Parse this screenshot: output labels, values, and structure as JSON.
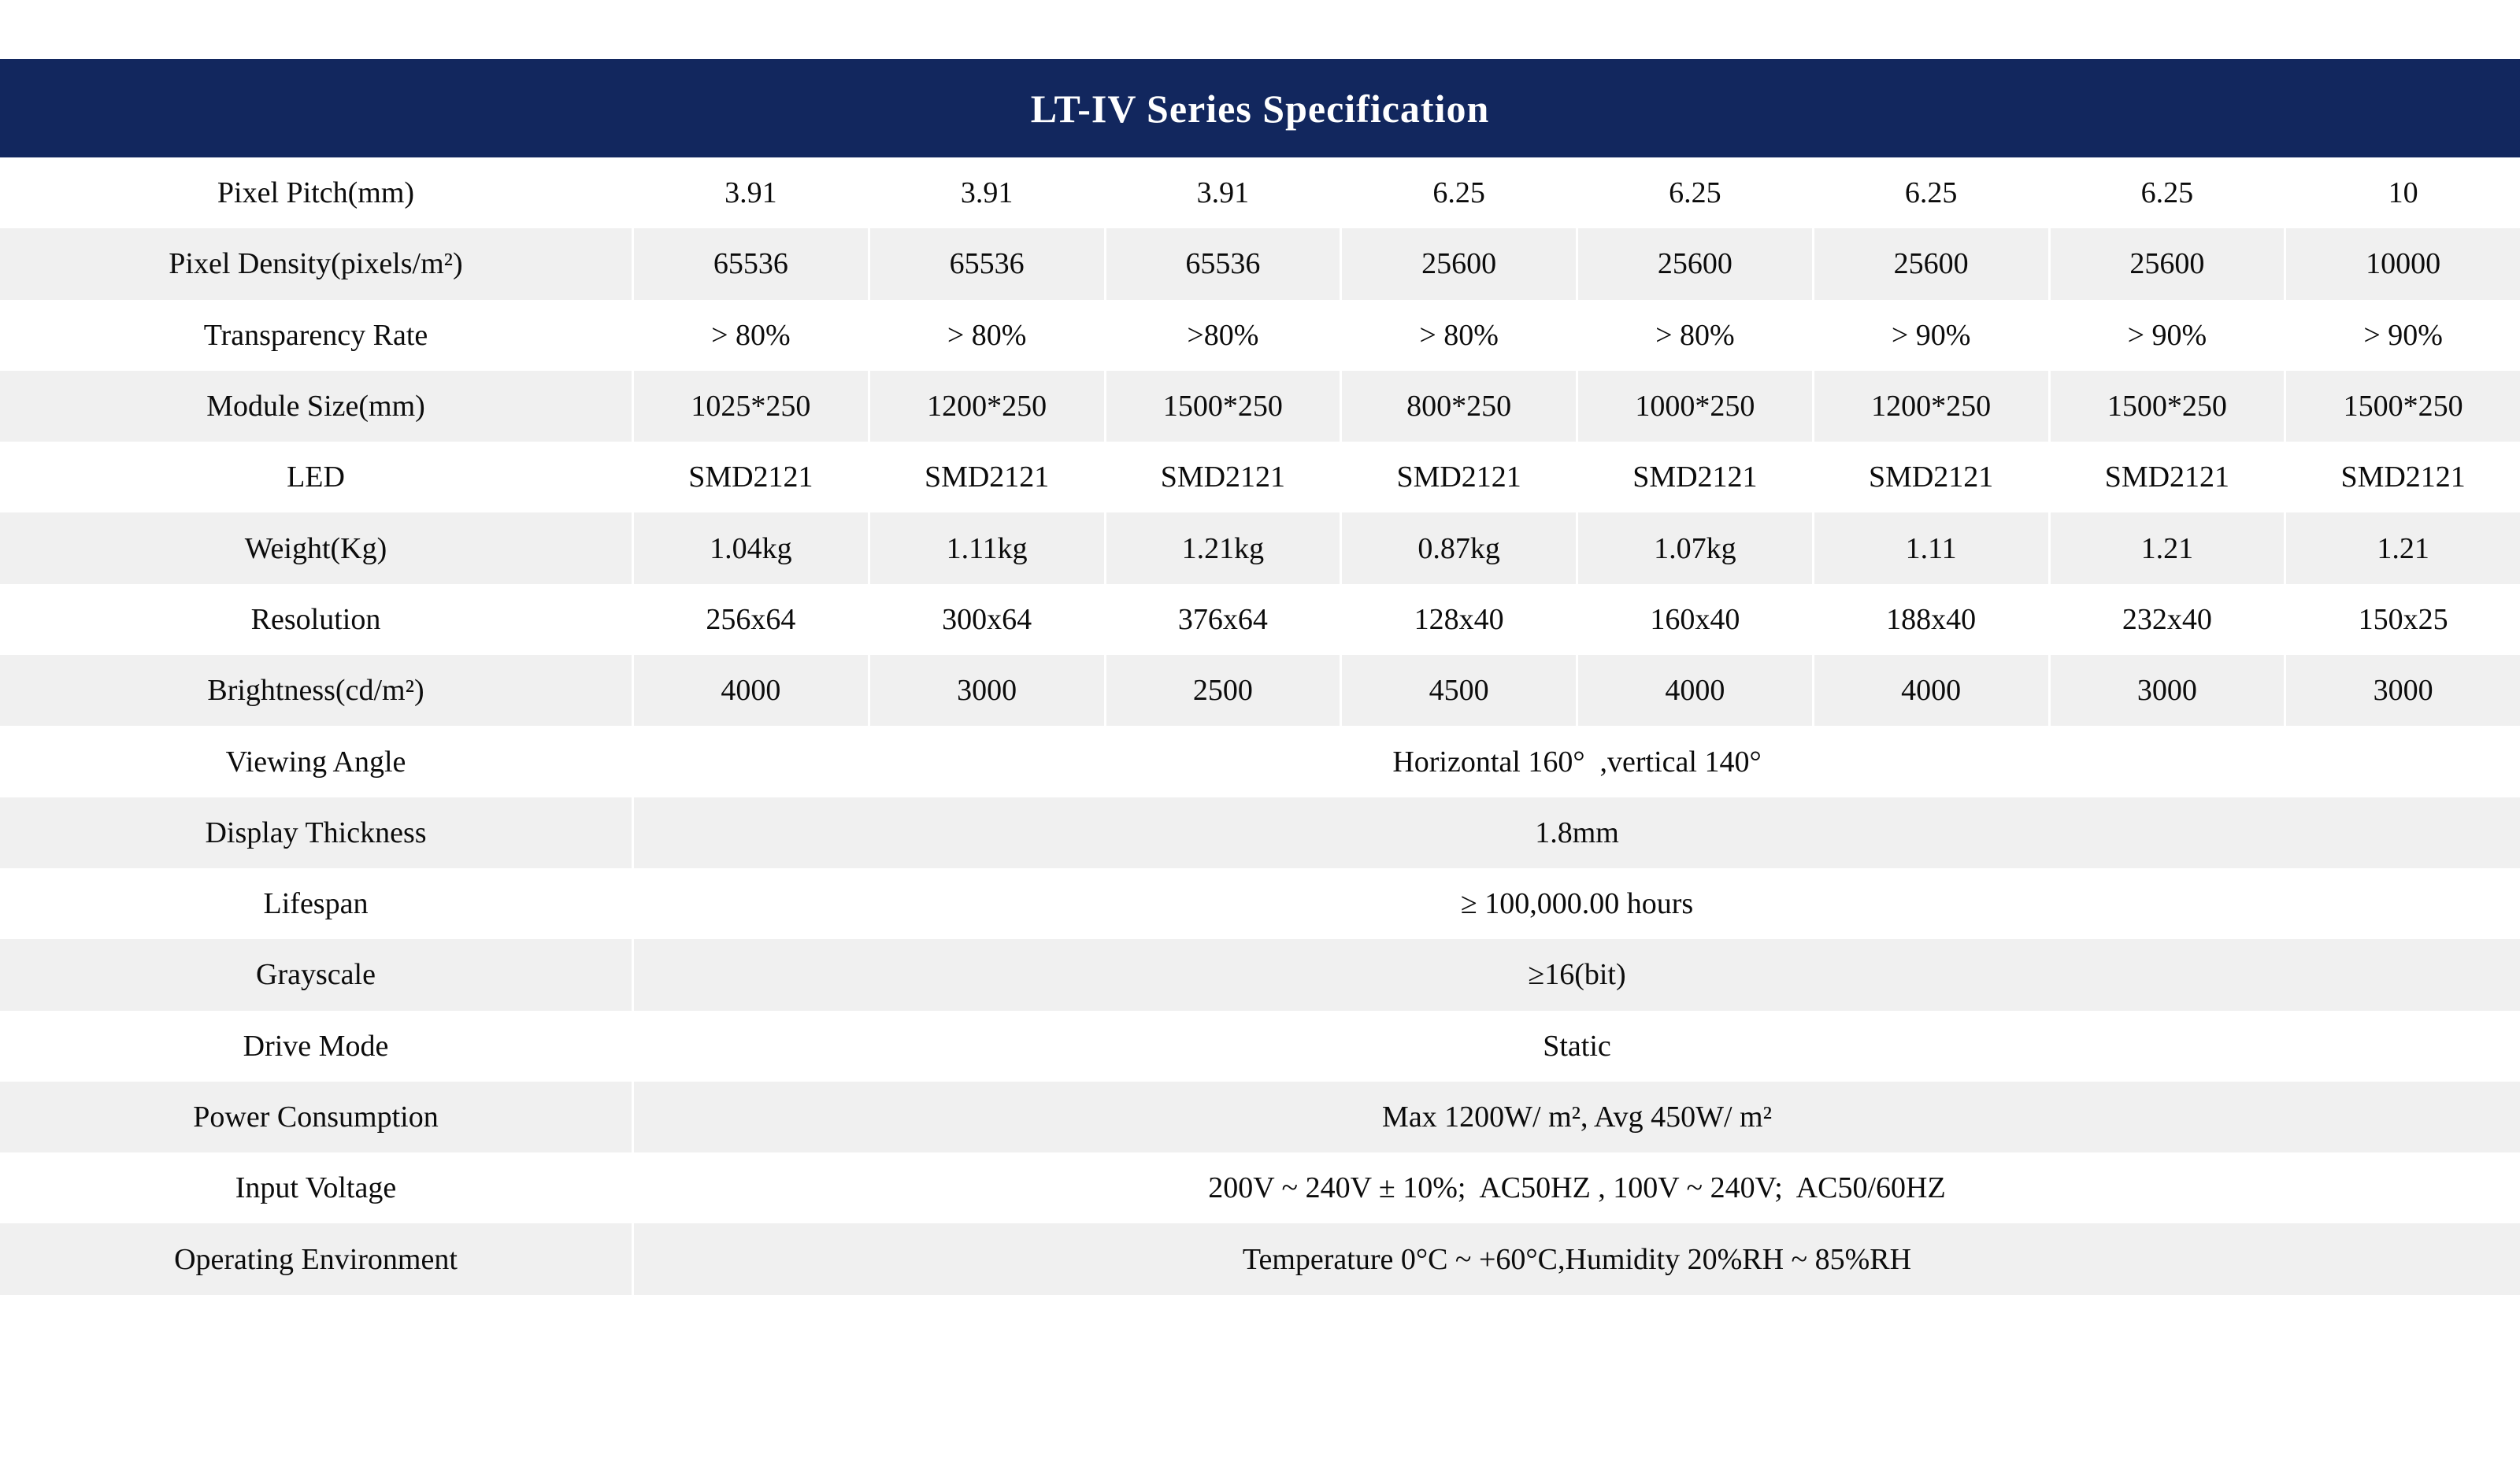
{
  "title": "LT-IV Series Specification",
  "colors": {
    "header_bg": "#12275e",
    "header_text": "#ffffff",
    "stripe_bg": "#f0f0f0",
    "row_bg": "#ffffff",
    "cell_text": "#0c0c0c"
  },
  "table": {
    "rows": [
      {
        "label": "Pixel Pitch(mm)",
        "values": [
          "3.91",
          "3.91",
          "3.91",
          "6.25",
          "6.25",
          "6.25",
          "6.25",
          "10"
        ]
      },
      {
        "label": "Pixel Density(pixels/m²)",
        "values": [
          "65536",
          "65536",
          "65536",
          "25600",
          "25600",
          "25600",
          "25600",
          "10000"
        ]
      },
      {
        "label": "Transparency Rate",
        "values": [
          "> 80%",
          "> 80%",
          ">80%",
          "> 80%",
          "> 80%",
          "> 90%",
          "> 90%",
          "> 90%"
        ]
      },
      {
        "label": "Module Size(mm)",
        "values": [
          "1025*250",
          "1200*250",
          "1500*250",
          "800*250",
          "1000*250",
          "1200*250",
          "1500*250",
          "1500*250"
        ]
      },
      {
        "label": "LED",
        "values": [
          "SMD2121",
          "SMD2121",
          "SMD2121",
          "SMD2121",
          "SMD2121",
          "SMD2121",
          "SMD2121",
          "SMD2121"
        ]
      },
      {
        "label": "Weight(Kg)",
        "values": [
          "1.04kg",
          "1.11kg",
          "1.21kg",
          "0.87kg",
          "1.07kg",
          "1.11",
          "1.21",
          "1.21"
        ]
      },
      {
        "label": "Resolution",
        "values": [
          "256x64",
          "300x64",
          "376x64",
          "128x40",
          "160x40",
          "188x40",
          "232x40",
          "150x25"
        ]
      },
      {
        "label": "Brightness(cd/m²)",
        "values": [
          "4000",
          "3000",
          "2500",
          "4500",
          "4000",
          "4000",
          "3000",
          "3000"
        ]
      },
      {
        "label": "Viewing Angle",
        "merged": "Horizontal 160°  ,vertical 140°"
      },
      {
        "label": "Display Thickness",
        "merged": "1.8mm"
      },
      {
        "label": "Lifespan",
        "merged": "≥ 100,000.00 hours"
      },
      {
        "label": "Grayscale",
        "merged": "≥16(bit)"
      },
      {
        "label": "Drive Mode",
        "merged": "Static"
      },
      {
        "label": "Power Consumption",
        "merged": "Max 1200W/ m², Avg 450W/ m²"
      },
      {
        "label": "Input Voltage",
        "merged": "200V ~ 240V ± 10%;  AC50HZ , 100V ~ 240V;  AC50/60HZ"
      },
      {
        "label": "Operating Environment",
        "merged": "Temperature 0°C ~ +60°C,Humidity 20%RH ~ 85%RH"
      }
    ]
  }
}
